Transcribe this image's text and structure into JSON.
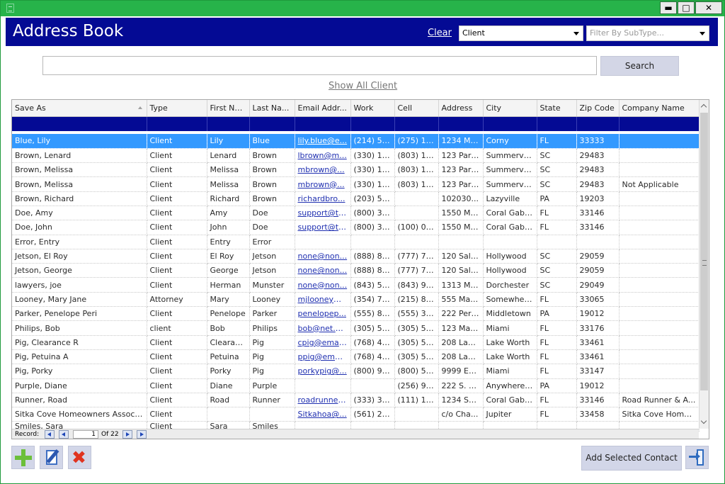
{
  "window": {
    "title": ""
  },
  "header": {
    "title": "Address Book",
    "clear_label": "Clear",
    "type_filter": "Client",
    "subtype_filter_placeholder": "Filter By SubType..."
  },
  "search": {
    "value": "",
    "button_label": "Search",
    "show_all_label": "Show All Client"
  },
  "grid": {
    "columns": [
      "Save As",
      "Type",
      "First Na...",
      "Last Na...",
      "Email Addr...",
      "Work",
      "Cell",
      "Address",
      "City",
      "State",
      "Zip Code",
      "Company Name"
    ],
    "rows": [
      [
        "Blue, Lily",
        "Client",
        "Lily",
        "Blue",
        "lily.blue@e...",
        "(214) 57...",
        "(275) 16...",
        "1234 Ma...",
        "Corny",
        "FL",
        "33333",
        ""
      ],
      [
        "Brown, Lenard",
        "Client",
        "Lenard",
        "Brown",
        "lbrown@m...",
        "(330) 11...",
        "(803) 11...",
        "123 Para...",
        "Summerville",
        "SC",
        "29483",
        ""
      ],
      [
        "Brown, Melissa",
        "Client",
        "Melissa",
        "Brown",
        "mbrown@...",
        "(330) 11...",
        "(803) 11...",
        "123 Para...",
        "Summerville",
        "SC",
        "29483",
        ""
      ],
      [
        "Brown, Melissa",
        "Client",
        "Melissa",
        "Brown",
        "mbrown@...",
        "(330) 11...",
        "(803) 11...",
        "123 Para...",
        "Summerville",
        "SC",
        "29483",
        "Not Applicable"
      ],
      [
        "Brown, Richard",
        "Client",
        "Richard",
        "Brown",
        "richardbro...",
        "(203) 56...",
        "",
        "102030...",
        "Lazyville",
        "PA",
        "19203",
        ""
      ],
      [
        "Doe, Amy",
        "Client",
        "Amy",
        "Doe",
        "support@tr...",
        "(800) 37...",
        "",
        "1550 Ma...",
        "Coral Gables",
        "FL",
        "33146",
        ""
      ],
      [
        "Doe, John",
        "Client",
        "John",
        "Doe",
        "support@tr...",
        "(800) 37...",
        "(100) 00...",
        "1550 Ma...",
        "Coral Gables",
        "FL",
        "33146",
        ""
      ],
      [
        "Error, Entry",
        "Client",
        "Entry",
        "Error",
        "",
        "",
        "",
        "",
        "",
        "",
        "",
        ""
      ],
      [
        "Jetson, El Roy",
        "Client",
        "El Roy",
        "Jetson",
        "none@non...",
        "(888) 88...",
        "(777) 77...",
        "120 Salt...",
        "Hollywood",
        "SC",
        "29059",
        ""
      ],
      [
        "Jetson, George",
        "Client",
        "George",
        "Jetson",
        "none@non...",
        "(888) 88...",
        "(777) 77...",
        "120 Salt...",
        "Hollywood",
        "SC",
        "29059",
        ""
      ],
      [
        "lawyers, joe",
        "Client",
        "Herman",
        "Munster",
        "none@non...",
        "(843) 55...",
        "(843) 99...",
        "1313 Ma...",
        "Dorchester",
        "SC",
        "29049",
        ""
      ],
      [
        "Looney, Mary Jane",
        "Attorney",
        "Mary",
        "Looney",
        "mjlooney@...",
        "(354) 73...",
        "(215) 81...",
        "555 Mai...",
        "Somewher...",
        "FL",
        "33065",
        ""
      ],
      [
        "Parker, Penelope Peri",
        "Client",
        "Penelope",
        "Parker",
        "penelopep...",
        "(555) 88...",
        "(555) 33...",
        "222 Peri...",
        "Middletown",
        "PA",
        "19012",
        ""
      ],
      [
        "Philips, Bob",
        "client",
        "Bob",
        "Philips",
        "bob@net.o...",
        "(305) 55...",
        "(305) 55...",
        "123 Mai...",
        "Miami",
        "FL",
        "33176",
        ""
      ],
      [
        "Pig, Clearance R",
        "Client",
        "Clearance",
        "Pig",
        "cpig@email...",
        "(768) 44...",
        "(305) 55...",
        "208 Lake...",
        "Lake Worth",
        "FL",
        "33461",
        ""
      ],
      [
        "Pig, Petuina A",
        "Client",
        "Petuina",
        "Pig",
        "ppig@emai...",
        "(768) 44...",
        "(305) 55...",
        "208 Lake...",
        "Lake Worth",
        "FL",
        "33461",
        ""
      ],
      [
        "Pig, Porky",
        "Client",
        "Porky",
        "Pig",
        "porkypig@...",
        "(800) 99...",
        "(800) 55...",
        "9999 Eat...",
        "Miami",
        "FL",
        "33147",
        ""
      ],
      [
        "Purple, Diane",
        "Client",
        "Diane",
        "Purple",
        "",
        "",
        "(256) 98...",
        "222 S. 3r...",
        "Anywherev...",
        "PA",
        "19012",
        ""
      ],
      [
        "Runner, Road",
        "Client",
        "Road",
        "Runner",
        "roadrunner...",
        "(333) 33...",
        "(111) 11...",
        "1234 So...",
        "Coral Gables",
        "FL",
        "33146",
        "Road Runner & A..."
      ],
      [
        "Sitka Cove Homeowners Associa...",
        "Client",
        "",
        "",
        "Sitkahoa@...",
        "(561) 22...",
        "",
        "c/o Cha...",
        "Jupiter",
        "FL",
        "33458",
        "Sitka Cove Home..."
      ],
      [
        "Smiles, Sara",
        "Client",
        "Sara",
        "Smiles",
        "",
        "",
        "",
        "",
        "",
        "",
        "",
        ""
      ]
    ]
  },
  "pager": {
    "label": "Record:",
    "current": "1",
    "of_label": "Of 22"
  },
  "footer": {
    "add_selected_label": "Add Selected Contact"
  },
  "icons": {
    "add": "plus-icon",
    "edit": "edit-icon",
    "delete": "delete-icon",
    "exit": "exit-icon"
  }
}
